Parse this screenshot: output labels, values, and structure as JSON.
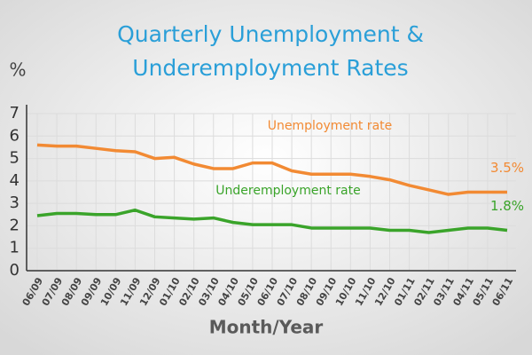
{
  "chart_data": {
    "type": "line",
    "title": [
      "Quarterly Unemployment &",
      "Underemployment Rates"
    ],
    "y_label": "%",
    "x_label": "Month/Year",
    "categories": [
      "06/09",
      "07/09",
      "08/09",
      "09/09",
      "10/09",
      "11/09",
      "12/09",
      "01/10",
      "02/10",
      "03/10",
      "04/10",
      "05/10",
      "06/10",
      "07/10",
      "08/10",
      "09/10",
      "10/10",
      "11/10",
      "12/10",
      "01/11",
      "02/11",
      "03/11",
      "04/11",
      "05/11",
      "06/11"
    ],
    "series": [
      {
        "name": "Unemployment rate",
        "color": "#f28a33",
        "values": [
          5.6,
          5.55,
          5.55,
          5.45,
          5.35,
          5.3,
          5.0,
          5.05,
          4.75,
          4.55,
          4.55,
          4.8,
          4.8,
          4.45,
          4.3,
          4.3,
          4.3,
          4.2,
          4.05,
          3.8,
          3.6,
          3.4,
          3.5,
          3.5,
          3.5
        ],
        "value_labels": [
          null,
          null,
          null,
          null,
          null,
          null,
          null,
          null,
          null,
          null,
          null,
          null,
          null,
          null,
          null,
          null,
          null,
          null,
          null,
          null,
          null,
          null,
          null,
          null,
          "3.5%"
        ]
      },
      {
        "name": "Underemployment rate",
        "color": "#3aa42a",
        "values": [
          2.45,
          2.55,
          2.55,
          2.5,
          2.5,
          2.7,
          2.4,
          2.35,
          2.3,
          2.35,
          2.15,
          2.05,
          2.05,
          2.05,
          1.9,
          1.9,
          1.9,
          1.9,
          1.8,
          1.8,
          1.7,
          1.8,
          1.9,
          1.9,
          1.8
        ],
        "value_labels": [
          null,
          null,
          null,
          null,
          null,
          null,
          null,
          null,
          null,
          null,
          null,
          null,
          null,
          null,
          null,
          null,
          null,
          null,
          null,
          null,
          null,
          null,
          null,
          null,
          "1.8%"
        ]
      }
    ],
    "ylim": [
      0,
      7
    ],
    "yticks": [
      0,
      1,
      2,
      3,
      4,
      5,
      6,
      7
    ],
    "grid": true
  }
}
